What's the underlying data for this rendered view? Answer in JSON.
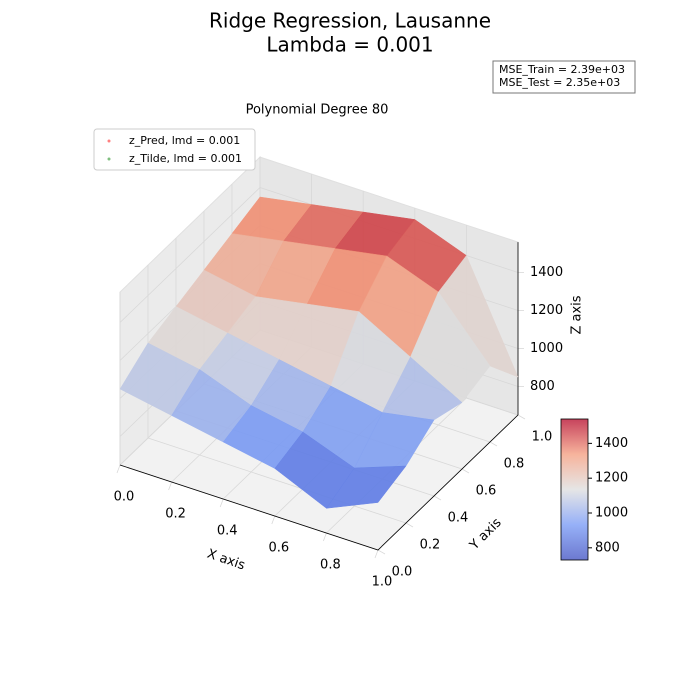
{
  "chart_data": {
    "type": "surface3d",
    "title": "Ridge Regression, Lausanne",
    "subtitle": "Lambda = 0.001",
    "axes_title": "Polynomial Degree 80",
    "annotation": [
      "MSE_Train = 2.39e+03",
      "MSE_Test = 2.35e+03"
    ],
    "legend": [
      {
        "name": "z_Pred, lmd = 0.001",
        "color": "#ff8080"
      },
      {
        "name": "z_Tilde, lmd = 0.001",
        "color": "#7fbf7f"
      }
    ],
    "xlabel": "X axis",
    "ylabel": "Y axis",
    "zlabel": "Z axis",
    "xlim": [
      0,
      1
    ],
    "ylim": [
      0,
      1
    ],
    "zlim": [
      650,
      1560
    ],
    "xticks": [
      {
        "value": 0,
        "label": "0.0"
      },
      0.2,
      0.4,
      0.6,
      0.8,
      {
        "value": 1,
        "label": "1.0"
      }
    ],
    "yticks": [
      {
        "value": 0,
        "label": "0.0"
      },
      0.2,
      0.4,
      0.6,
      0.8,
      {
        "value": 1,
        "label": "1.0"
      }
    ],
    "zticks": [
      800,
      1000,
      1200,
      1400
    ],
    "colormap": "coolwarm",
    "clim": [
      730,
      1540
    ],
    "cticks": [
      800,
      1000,
      1200,
      1400
    ],
    "x": [
      0,
      0.2,
      0.4,
      0.6,
      0.8,
      1
    ],
    "y": [
      0,
      0.2,
      0.4,
      0.6,
      0.8,
      1
    ],
    "z": [
      [
        1050,
        1000,
        950,
        900,
        780,
        900
      ],
      [
        1150,
        1100,
        1000,
        950,
        850,
        950
      ],
      [
        1200,
        1150,
        1100,
        1050,
        1000,
        1050
      ],
      [
        1250,
        1200,
        1250,
        1300,
        1150,
        1000
      ],
      [
        1300,
        1350,
        1400,
        1450,
        1350,
        1050
      ],
      [
        1350,
        1400,
        1450,
        1500,
        1400,
        850
      ]
    ]
  }
}
